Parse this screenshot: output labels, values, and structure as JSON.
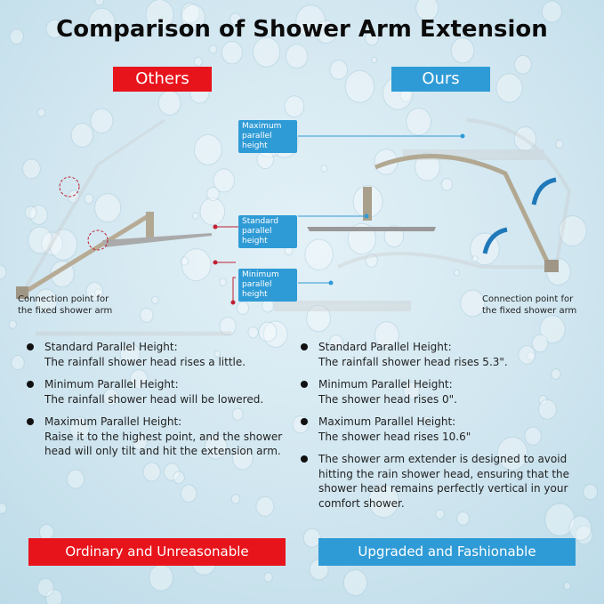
{
  "title": "Comparison of Shower Arm Extension",
  "colors": {
    "others": "#e8141c",
    "ours": "#2f9bd6"
  },
  "others": {
    "header": "Others",
    "caption": [
      "Connection point for",
      "the fixed shower arm"
    ],
    "points": [
      {
        "title": "Standard Parallel Height:",
        "text": "The rainfall shower head rises a little."
      },
      {
        "title": "Minimum Parallel Height:",
        "text": "The rainfall shower head will be lowered."
      },
      {
        "title": "Maximum Parallel Height:",
        "text": "Raise it to the highest point, and the shower head will only tilt and hit the extension arm."
      }
    ],
    "footer": "Ordinary and Unreasonable"
  },
  "labels": {
    "maximum": [
      "Maximum",
      "parallel height"
    ],
    "standard": [
      "Standard",
      "parallel height"
    ],
    "minimum": [
      "Minimum",
      "parallel height"
    ]
  },
  "ours": {
    "header": "Ours",
    "caption": [
      "Connection point for",
      "the fixed shower arm"
    ],
    "points": [
      {
        "title": "Standard Parallel Height:",
        "text": "The rainfall shower head rises 5.3\"."
      },
      {
        "title": "Minimum Parallel Height:",
        "text": "The shower head rises 0\"."
      },
      {
        "title": "Maximum Parallel Height:",
        "text": "The shower head rises 10.6\""
      },
      {
        "title": "",
        "text": "The shower arm extender is designed to avoid hitting the rain shower head, ensuring that the shower head remains perfectly vertical in your comfort shower."
      }
    ],
    "footer": "Upgraded and Fashionable"
  }
}
